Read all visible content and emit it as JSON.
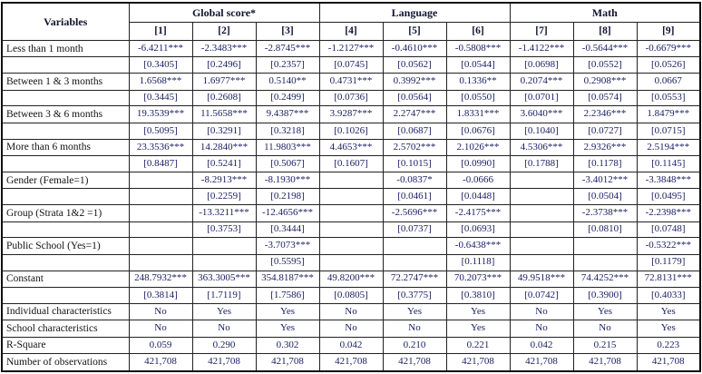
{
  "table": {
    "corner_label": "Variables",
    "groups": [
      {
        "label": "Global score*"
      },
      {
        "label": "Language"
      },
      {
        "label": "Math"
      }
    ],
    "columns": [
      "[1]",
      "[2]",
      "[3]",
      "[4]",
      "[5]",
      "[6]",
      "[7]",
      "[8]",
      "[9]"
    ],
    "rows": [
      {
        "label": "Less than 1 month",
        "cells": [
          "-6.4211***",
          "-2.3483***",
          "-2.8745***",
          "-1.2127***",
          "-0.4610***",
          "-0.5808***",
          "-1.4122***",
          "-0.5644***",
          "-0.6679***"
        ]
      },
      {
        "label": "",
        "cells": [
          "[0.3405]",
          "[0.2496]",
          "[0.2357]",
          "[0.0745]",
          "[0.0562]",
          "[0.0544]",
          "[0.0698]",
          "[0.0552]",
          "[0.0526]"
        ]
      },
      {
        "label": "Between 1 & 3 months",
        "cells": [
          "1.6568***",
          "1.6977***",
          "0.5140**",
          "0.4731***",
          "0.3992***",
          "0.1336**",
          "0.2074***",
          "0.2908***",
          "0.0667"
        ]
      },
      {
        "label": "",
        "cells": [
          "[0.3445]",
          "[0.2608]",
          "[0.2499]",
          "[0.0736]",
          "[0.0564]",
          "[0.0550]",
          "[0.0701]",
          "[0.0574]",
          "[0.0553]"
        ]
      },
      {
        "label": "Between 3 & 6 months",
        "cells": [
          "19.3539***",
          "11.5658***",
          "9.4387***",
          "3.9287***",
          "2.2747***",
          "1.8331***",
          "3.6040***",
          "2.2346***",
          "1.8479***"
        ]
      },
      {
        "label": "",
        "cells": [
          "[0.5095]",
          "[0.3291]",
          "[0.3218]",
          "[0.1026]",
          "[0.0687]",
          "[0.0676]",
          "[0.1040]",
          "[0.0727]",
          "[0.0715]"
        ]
      },
      {
        "label": "More than 6 months",
        "cells": [
          "23.3536***",
          "14.2840***",
          "11.9803***",
          "4.4653***",
          "2.5702***",
          "2.1026***",
          "4.5306***",
          "2.9326***",
          "2.5194***"
        ]
      },
      {
        "label": "",
        "cells": [
          "[0.8487]",
          "[0.5241]",
          "[0.5067]",
          "[0.1607]",
          "[0.1015]",
          "[0.0990]",
          "[0.1788]",
          "[0.1178]",
          "[0.1145]"
        ]
      },
      {
        "label": "Gender (Female=1)",
        "cells": [
          "",
          "-8.2913***",
          "-8.1930***",
          "",
          "-0.0837*",
          "-0.0666",
          "",
          "-3.4012***",
          "-3.3848***"
        ]
      },
      {
        "label": "",
        "cells": [
          "",
          "[0.2259]",
          "[0.2198]",
          "",
          "[0.0461]",
          "[0.0448]",
          "",
          "[0.0504]",
          "[0.0495]"
        ]
      },
      {
        "label": "Group (Strata 1&2 =1)",
        "cells": [
          "",
          "-13.3211***",
          "-12.4656***",
          "",
          "-2.5696***",
          "-2.4175***",
          "",
          "-2.3738***",
          "-2.2398***"
        ]
      },
      {
        "label": "",
        "cells": [
          "",
          "[0.3753]",
          "[0.3444]",
          "",
          "[0.0737]",
          "[0.0693]",
          "",
          "[0.0810]",
          "[0.0748]"
        ]
      },
      {
        "label": "Public School (Yes=1)",
        "cells": [
          "",
          "",
          "-3.7073***",
          "",
          "",
          "-0.6438***",
          "",
          "",
          "-0.5322***"
        ]
      },
      {
        "label": "",
        "cells": [
          "",
          "",
          "[0.5595]",
          "",
          "",
          "[0.1118]",
          "",
          "",
          "[0.1179]"
        ]
      },
      {
        "label": "Constant",
        "cells": [
          "248.7932***",
          "363.3005***",
          "354.8187***",
          "49.8200***",
          "72.2747***",
          "70.2073***",
          "49.9518***",
          "74.4252***",
          "72.8131***"
        ]
      },
      {
        "label": "",
        "cells": [
          "[0.3814]",
          "[1.7119]",
          "[1.7586]",
          "[0.0805]",
          "[0.3775]",
          "[0.3810]",
          "[0.0742]",
          "[0.3900]",
          "[0.4033]"
        ]
      },
      {
        "label": "Individual characteristics",
        "cells": [
          "No",
          "Yes",
          "Yes",
          "No",
          "Yes",
          "Yes",
          "No",
          "Yes",
          "Yes"
        ]
      },
      {
        "label": "School characteristics",
        "cells": [
          "No",
          "No",
          "Yes",
          "No",
          "No",
          "Yes",
          "No",
          "No",
          "Yes"
        ]
      },
      {
        "label": "R-Square",
        "cells": [
          "0.059",
          "0.290",
          "0.302",
          "0.042",
          "0.210",
          "0.221",
          "0.042",
          "0.215",
          "0.223"
        ]
      },
      {
        "label": "Number of observations",
        "cells": [
          "421,708",
          "421,708",
          "421,708",
          "421,708",
          "421,708",
          "421,708",
          "421,708",
          "421,708",
          "421,708"
        ]
      }
    ],
    "colors": {
      "value_text": "#1c2263",
      "label_text": "#141414",
      "border": "#222222"
    }
  }
}
